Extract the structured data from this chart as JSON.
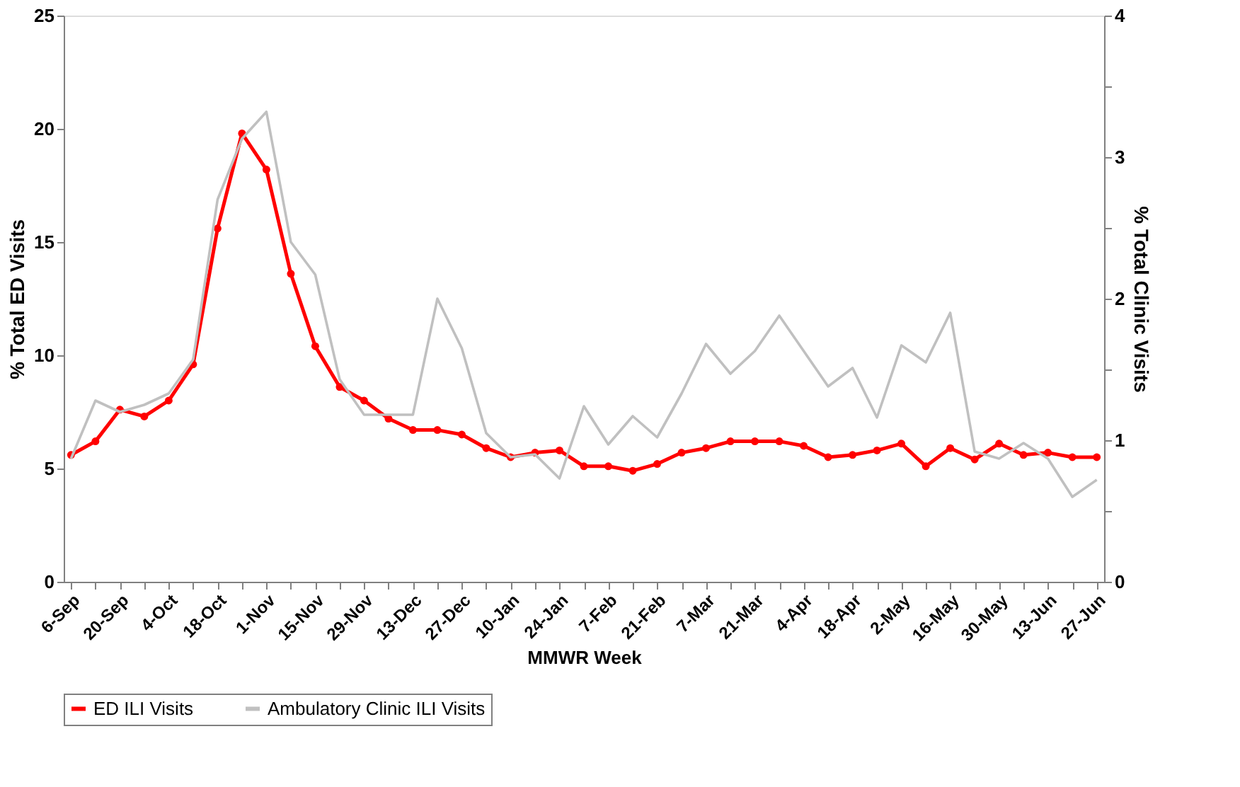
{
  "chart_data": {
    "type": "line",
    "xlabel": "MMWR Week",
    "ylabel": "% Total ED Visits",
    "y2label": "% Total Clinic Visits",
    "categories": [
      "6-Sep",
      null,
      "20-Sep",
      null,
      "4-Oct",
      null,
      "18-Oct",
      null,
      "1-Nov",
      null,
      "15-Nov",
      null,
      "29-Nov",
      null,
      "13-Dec",
      null,
      "27-Dec",
      null,
      "10-Jan",
      null,
      "24-Jan",
      null,
      "7-Feb",
      null,
      "21-Feb",
      null,
      "7-Mar",
      null,
      "21-Mar",
      null,
      "4-Apr",
      null,
      "18-Apr",
      null,
      "2-May",
      null,
      "16-May",
      null,
      "30-May",
      null,
      "13-Jun",
      null,
      "27-Jun"
    ],
    "series": [
      {
        "name": "ED ILI Visits",
        "color": "#ff0000",
        "marker": "circle",
        "values": [
          5.6,
          6.2,
          7.6,
          7.3,
          8.0,
          9.6,
          15.6,
          19.8,
          18.2,
          13.6,
          10.4,
          8.6,
          8.0,
          7.2,
          6.7,
          6.7,
          6.5,
          5.9,
          5.5,
          5.7,
          5.8,
          5.1,
          5.1,
          4.9,
          5.2,
          5.7,
          5.9,
          6.2,
          6.2,
          6.2,
          6.0,
          5.5,
          5.6,
          5.8,
          6.1,
          5.1,
          5.9,
          5.4,
          6.1,
          5.6,
          5.7,
          5.5,
          5.5
        ]
      },
      {
        "name": "Ambulatory Clinic ILI Visits",
        "color": "#c0c0c0",
        "marker": "none",
        "axis": "y2",
        "values": [
          0.87,
          1.28,
          1.2,
          1.25,
          1.33,
          1.57,
          2.7,
          3.13,
          3.32,
          2.4,
          2.17,
          1.43,
          1.18,
          1.18,
          1.18,
          2.0,
          1.65,
          1.05,
          0.88,
          0.9,
          0.73,
          1.24,
          0.97,
          1.17,
          1.02,
          1.33,
          1.68,
          1.47,
          1.63,
          1.88,
          1.63,
          1.38,
          1.51,
          1.16,
          1.67,
          1.55,
          1.9,
          0.92,
          0.87,
          0.98,
          0.87,
          0.6,
          0.72
        ]
      }
    ],
    "ylim": [
      0,
      25
    ],
    "yticks": [
      0,
      5,
      10,
      15,
      20,
      25
    ],
    "y2lim": [
      0,
      4
    ],
    "y2ticks": [
      0,
      {
        "value": 0.5,
        "label": null
      },
      1,
      {
        "value": 1.5,
        "label": null
      },
      2,
      {
        "value": 2.5,
        "label": null
      },
      3,
      {
        "value": 3.5,
        "label": null
      },
      4
    ],
    "grid": false,
    "legend": "bottom"
  }
}
